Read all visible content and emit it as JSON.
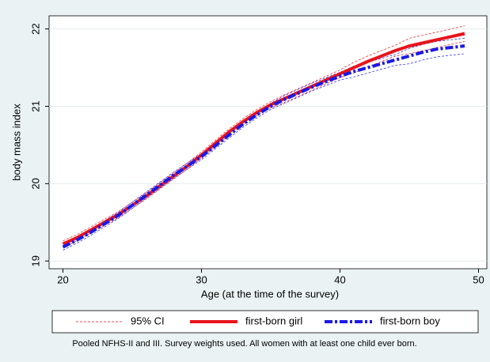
{
  "chart_data": {
    "type": "line",
    "x_label": "Age (at the time of the survey)",
    "y_label": "body mass index",
    "note": "Pooled NFHS-II and III. Survey weights used. All women with at least one child ever born.",
    "ci_label": "95% CI",
    "x": [
      20,
      21,
      22,
      23,
      24,
      25,
      26,
      27,
      28,
      29,
      30,
      31,
      32,
      33,
      34,
      35,
      36,
      37,
      38,
      39,
      40,
      41,
      42,
      43,
      44,
      45,
      46,
      47,
      48,
      49
    ],
    "series": [
      {
        "name": "first-born girl",
        "color": "#e8141c",
        "ci_color": "#e8141c",
        "dash": "solid",
        "values": [
          19.22,
          19.3,
          19.4,
          19.5,
          19.6,
          19.72,
          19.84,
          19.97,
          20.1,
          20.23,
          20.37,
          20.52,
          20.67,
          20.8,
          20.92,
          21.02,
          21.1,
          21.18,
          21.26,
          21.34,
          21.42,
          21.5,
          21.58,
          21.65,
          21.72,
          21.78,
          21.82,
          21.86,
          21.9,
          21.94
        ],
        "ci_lower": [
          19.18,
          19.26,
          19.36,
          19.46,
          19.56,
          19.68,
          19.8,
          19.93,
          20.06,
          20.19,
          20.33,
          20.48,
          20.63,
          20.76,
          20.88,
          20.98,
          21.05,
          21.13,
          21.21,
          21.29,
          21.37,
          21.43,
          21.51,
          21.58,
          21.65,
          21.68,
          21.72,
          21.76,
          21.8,
          21.84
        ],
        "ci_upper": [
          19.26,
          19.34,
          19.44,
          19.54,
          19.64,
          19.76,
          19.88,
          20.01,
          20.14,
          20.27,
          20.41,
          20.56,
          20.71,
          20.84,
          20.96,
          21.06,
          21.15,
          21.23,
          21.31,
          21.39,
          21.47,
          21.57,
          21.65,
          21.72,
          21.79,
          21.88,
          21.92,
          21.96,
          22.0,
          22.04
        ]
      },
      {
        "name": "first-born boy",
        "color": "#1a1ae6",
        "ci_color": "#1a1ae6",
        "dash": "dashdot",
        "values": [
          19.18,
          19.27,
          19.37,
          19.48,
          19.59,
          19.72,
          19.85,
          19.98,
          20.11,
          20.23,
          20.35,
          20.49,
          20.63,
          20.77,
          20.89,
          21.0,
          21.09,
          21.17,
          21.25,
          21.32,
          21.39,
          21.45,
          21.5,
          21.55,
          21.6,
          21.65,
          21.7,
          21.74,
          21.76,
          21.78
        ],
        "ci_lower": [
          19.14,
          19.23,
          19.33,
          19.44,
          19.55,
          19.68,
          19.81,
          19.94,
          20.07,
          20.19,
          20.31,
          20.45,
          20.59,
          20.73,
          20.85,
          20.96,
          21.04,
          21.12,
          21.2,
          21.27,
          21.34,
          21.38,
          21.43,
          21.48,
          21.53,
          21.55,
          21.6,
          21.64,
          21.66,
          21.68
        ],
        "ci_upper": [
          19.22,
          19.31,
          19.41,
          19.52,
          19.63,
          19.76,
          19.89,
          20.02,
          20.15,
          20.27,
          20.39,
          20.53,
          20.67,
          20.81,
          20.93,
          21.04,
          21.14,
          21.22,
          21.3,
          21.37,
          21.44,
          21.52,
          21.57,
          21.62,
          21.67,
          21.75,
          21.8,
          21.84,
          21.86,
          21.88
        ]
      }
    ],
    "xlim": [
      19,
      50.6
    ],
    "xticks": [
      20,
      30,
      40,
      50
    ],
    "ylim": [
      18.9,
      22.17
    ],
    "yticks": [
      19,
      20,
      21,
      22
    ],
    "grid": true
  }
}
